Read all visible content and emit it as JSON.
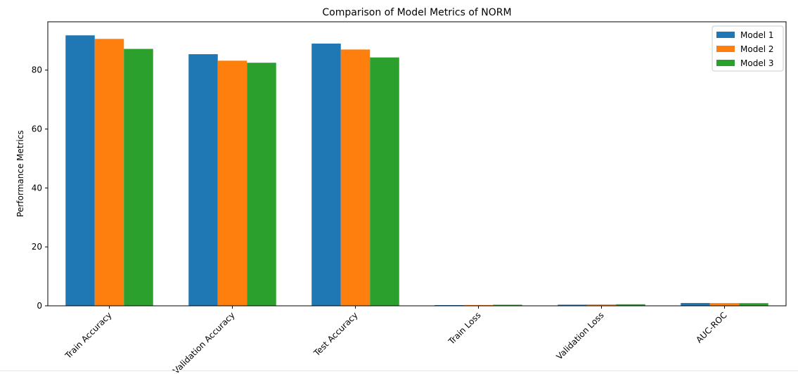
{
  "chart_data": {
    "type": "bar",
    "title": "Comparison of Model Metrics of NORM",
    "xlabel": "",
    "ylabel": "Performance Metrics",
    "categories": [
      "Train Accuracy",
      "Validation Accuracy",
      "Test Accuracy",
      "Train Loss",
      "Validation Loss",
      "AUC-ROC"
    ],
    "series": [
      {
        "name": "Model 1",
        "color": "#1f77b4",
        "values": [
          91.8,
          85.4,
          89.0,
          0.22,
          0.38,
          0.95
        ]
      },
      {
        "name": "Model 2",
        "color": "#ff7f0e",
        "values": [
          90.6,
          83.2,
          87.0,
          0.27,
          0.45,
          0.93
        ]
      },
      {
        "name": "Model 3",
        "color": "#2ca02c",
        "values": [
          87.2,
          82.5,
          84.3,
          0.36,
          0.52,
          0.9
        ]
      }
    ],
    "ylim": [
      0,
      96.4
    ],
    "yticks": [
      0,
      20,
      40,
      60,
      80
    ],
    "legend_position": "top-right",
    "grid": false
  }
}
